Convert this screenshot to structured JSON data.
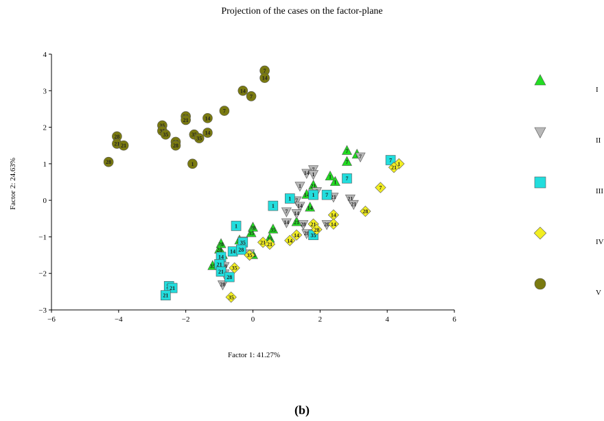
{
  "chart_data": {
    "type": "scatter",
    "title": "Projection of the cases on the factor-plane",
    "xlabel": "Factor 1: 41.27%",
    "ylabel": "Factor 2: 24.63%",
    "xlim": [
      -6,
      6
    ],
    "ylim": [
      -3,
      4
    ],
    "xticks": [
      "−6",
      "−4",
      "−2",
      "0",
      "2",
      "4",
      "6"
    ],
    "yticks": [
      "−3",
      "−2",
      "−1",
      "0",
      "1",
      "2",
      "3",
      "4"
    ],
    "grid": false,
    "legend_position": "right",
    "panel_label": "(b)",
    "colors": {
      "I": "#22dd22",
      "II": "#b8b8b8",
      "III": "#22dddd",
      "IV": "#f2ee22",
      "V": "#7a7a10"
    },
    "series": [
      {
        "name": "I",
        "marker": "triangle-up",
        "points": [
          {
            "x": 2.8,
            "y": 1.35,
            "label": "7"
          },
          {
            "x": 3.1,
            "y": 1.25,
            "label": "1"
          },
          {
            "x": 2.8,
            "y": 1.05,
            "label": "7"
          },
          {
            "x": 2.3,
            "y": 0.65,
            "label": "1"
          },
          {
            "x": 2.45,
            "y": 0.5,
            "label": "1"
          },
          {
            "x": 1.8,
            "y": 0.4,
            "label": "21"
          },
          {
            "x": 1.6,
            "y": 0.15,
            "label": "14"
          },
          {
            "x": 1.7,
            "y": -0.2,
            "label": "14"
          },
          {
            "x": 1.3,
            "y": -0.6,
            "label": "21"
          },
          {
            "x": 0.6,
            "y": -0.8,
            "label": "35"
          },
          {
            "x": 0.5,
            "y": -1.05,
            "label": "35"
          },
          {
            "x": 0.0,
            "y": -0.75,
            "label": "28"
          },
          {
            "x": -0.05,
            "y": -0.9,
            "label": "35"
          },
          {
            "x": 0.0,
            "y": -1.5,
            "label": "28"
          },
          {
            "x": -0.4,
            "y": -1.1,
            "label": "35"
          },
          {
            "x": -0.95,
            "y": -1.2,
            "label": "28"
          },
          {
            "x": -1.0,
            "y": -1.35,
            "label": "28"
          },
          {
            "x": -0.9,
            "y": -1.5,
            "label": "35"
          },
          {
            "x": -1.2,
            "y": -1.8,
            "label": "35"
          }
        ]
      },
      {
        "name": "II",
        "marker": "triangle-down",
        "points": [
          {
            "x": 3.2,
            "y": 1.2,
            "label": "7"
          },
          {
            "x": 1.8,
            "y": 0.85,
            "label": "7"
          },
          {
            "x": 1.6,
            "y": 0.75,
            "label": "14"
          },
          {
            "x": 1.8,
            "y": 0.72,
            "label": "1"
          },
          {
            "x": 1.4,
            "y": 0.4,
            "label": "1"
          },
          {
            "x": 1.9,
            "y": 0.25,
            "label": "7"
          },
          {
            "x": 1.3,
            "y": 0.0,
            "label": "7"
          },
          {
            "x": 2.4,
            "y": 0.1,
            "label": "21"
          },
          {
            "x": 2.9,
            "y": 0.05,
            "label": "21"
          },
          {
            "x": 3.0,
            "y": -0.1,
            "label": "21"
          },
          {
            "x": 1.0,
            "y": -0.3,
            "label": "7"
          },
          {
            "x": 1.4,
            "y": -0.15,
            "label": "14"
          },
          {
            "x": 1.3,
            "y": -0.35,
            "label": "14"
          },
          {
            "x": 1.0,
            "y": -0.6,
            "label": "14"
          },
          {
            "x": 1.5,
            "y": -0.65,
            "label": "28"
          },
          {
            "x": 2.2,
            "y": -0.65,
            "label": "28"
          },
          {
            "x": 1.6,
            "y": -0.9,
            "label": "28"
          },
          {
            "x": -0.1,
            "y": -1.45,
            "label": "35"
          },
          {
            "x": -0.3,
            "y": -1.1,
            "label": "28"
          },
          {
            "x": -0.85,
            "y": -1.8,
            "label": "28"
          },
          {
            "x": -0.85,
            "y": -2.0,
            "label": "28"
          },
          {
            "x": -0.9,
            "y": -2.3,
            "label": "28"
          }
        ]
      },
      {
        "name": "III",
        "marker": "square",
        "points": [
          {
            "x": 4.1,
            "y": 1.1,
            "label": "7"
          },
          {
            "x": 2.8,
            "y": 0.6,
            "label": "7"
          },
          {
            "x": 1.1,
            "y": 0.05,
            "label": "1"
          },
          {
            "x": 1.8,
            "y": 0.15,
            "label": "1"
          },
          {
            "x": 2.2,
            "y": 0.15,
            "label": "7"
          },
          {
            "x": 0.6,
            "y": -0.15,
            "label": "1"
          },
          {
            "x": -0.5,
            "y": -0.7,
            "label": "1"
          },
          {
            "x": 1.8,
            "y": -0.95,
            "label": "35"
          },
          {
            "x": -0.6,
            "y": -1.4,
            "label": "14"
          },
          {
            "x": -0.3,
            "y": -1.15,
            "label": "35"
          },
          {
            "x": -0.35,
            "y": -1.35,
            "label": "28"
          },
          {
            "x": -0.95,
            "y": -1.55,
            "label": "14"
          },
          {
            "x": -1.0,
            "y": -1.75,
            "label": "21"
          },
          {
            "x": -0.95,
            "y": -1.95,
            "label": "21"
          },
          {
            "x": -0.7,
            "y": -2.1,
            "label": "28"
          },
          {
            "x": -2.5,
            "y": -2.35,
            "label": "21"
          },
          {
            "x": -2.4,
            "y": -2.4,
            "label": "21"
          },
          {
            "x": -2.6,
            "y": -2.6,
            "label": "21"
          }
        ]
      },
      {
        "name": "IV",
        "marker": "diamond",
        "points": [
          {
            "x": 4.35,
            "y": 1.0,
            "label": "1"
          },
          {
            "x": 4.2,
            "y": 0.9,
            "label": "21"
          },
          {
            "x": 3.8,
            "y": 0.35,
            "label": "7"
          },
          {
            "x": 3.35,
            "y": -0.3,
            "label": "28"
          },
          {
            "x": 2.4,
            "y": -0.4,
            "label": "14"
          },
          {
            "x": 2.4,
            "y": -0.65,
            "label": "14"
          },
          {
            "x": 1.8,
            "y": -0.65,
            "label": "21"
          },
          {
            "x": 1.9,
            "y": -0.8,
            "label": "28"
          },
          {
            "x": 1.3,
            "y": -0.95,
            "label": "14"
          },
          {
            "x": 1.1,
            "y": -1.1,
            "label": "14"
          },
          {
            "x": 0.3,
            "y": -1.15,
            "label": "21"
          },
          {
            "x": 0.5,
            "y": -1.2,
            "label": "21"
          },
          {
            "x": -0.1,
            "y": -1.5,
            "label": "35"
          },
          {
            "x": -0.55,
            "y": -1.85,
            "label": "35"
          },
          {
            "x": -0.65,
            "y": -2.65,
            "label": "35"
          }
        ]
      },
      {
        "name": "V",
        "marker": "circle",
        "points": [
          {
            "x": 0.35,
            "y": 3.55,
            "label": "7"
          },
          {
            "x": 0.35,
            "y": 3.35,
            "label": "14"
          },
          {
            "x": -0.3,
            "y": 3.0,
            "label": "14"
          },
          {
            "x": -0.05,
            "y": 2.85,
            "label": "7"
          },
          {
            "x": -0.85,
            "y": 2.45,
            "label": "7"
          },
          {
            "x": -2.0,
            "y": 2.3,
            "label": "21"
          },
          {
            "x": -2.0,
            "y": 2.2,
            "label": "21"
          },
          {
            "x": -1.35,
            "y": 2.25,
            "label": "14"
          },
          {
            "x": -2.7,
            "y": 2.05,
            "label": "35"
          },
          {
            "x": -2.7,
            "y": 1.9,
            "label": "35"
          },
          {
            "x": -2.6,
            "y": 1.8,
            "label": "35"
          },
          {
            "x": -1.75,
            "y": 1.8,
            "label": "35"
          },
          {
            "x": -1.6,
            "y": 1.7,
            "label": "35"
          },
          {
            "x": -1.35,
            "y": 1.85,
            "label": "14"
          },
          {
            "x": -2.3,
            "y": 1.6,
            "label": "28"
          },
          {
            "x": -2.3,
            "y": 1.5,
            "label": "28"
          },
          {
            "x": -4.05,
            "y": 1.75,
            "label": "28"
          },
          {
            "x": -4.05,
            "y": 1.55,
            "label": "21"
          },
          {
            "x": -3.85,
            "y": 1.5,
            "label": "21"
          },
          {
            "x": -4.3,
            "y": 1.05,
            "label": "28"
          },
          {
            "x": -1.8,
            "y": 1.0,
            "label": "1"
          }
        ]
      }
    ]
  }
}
